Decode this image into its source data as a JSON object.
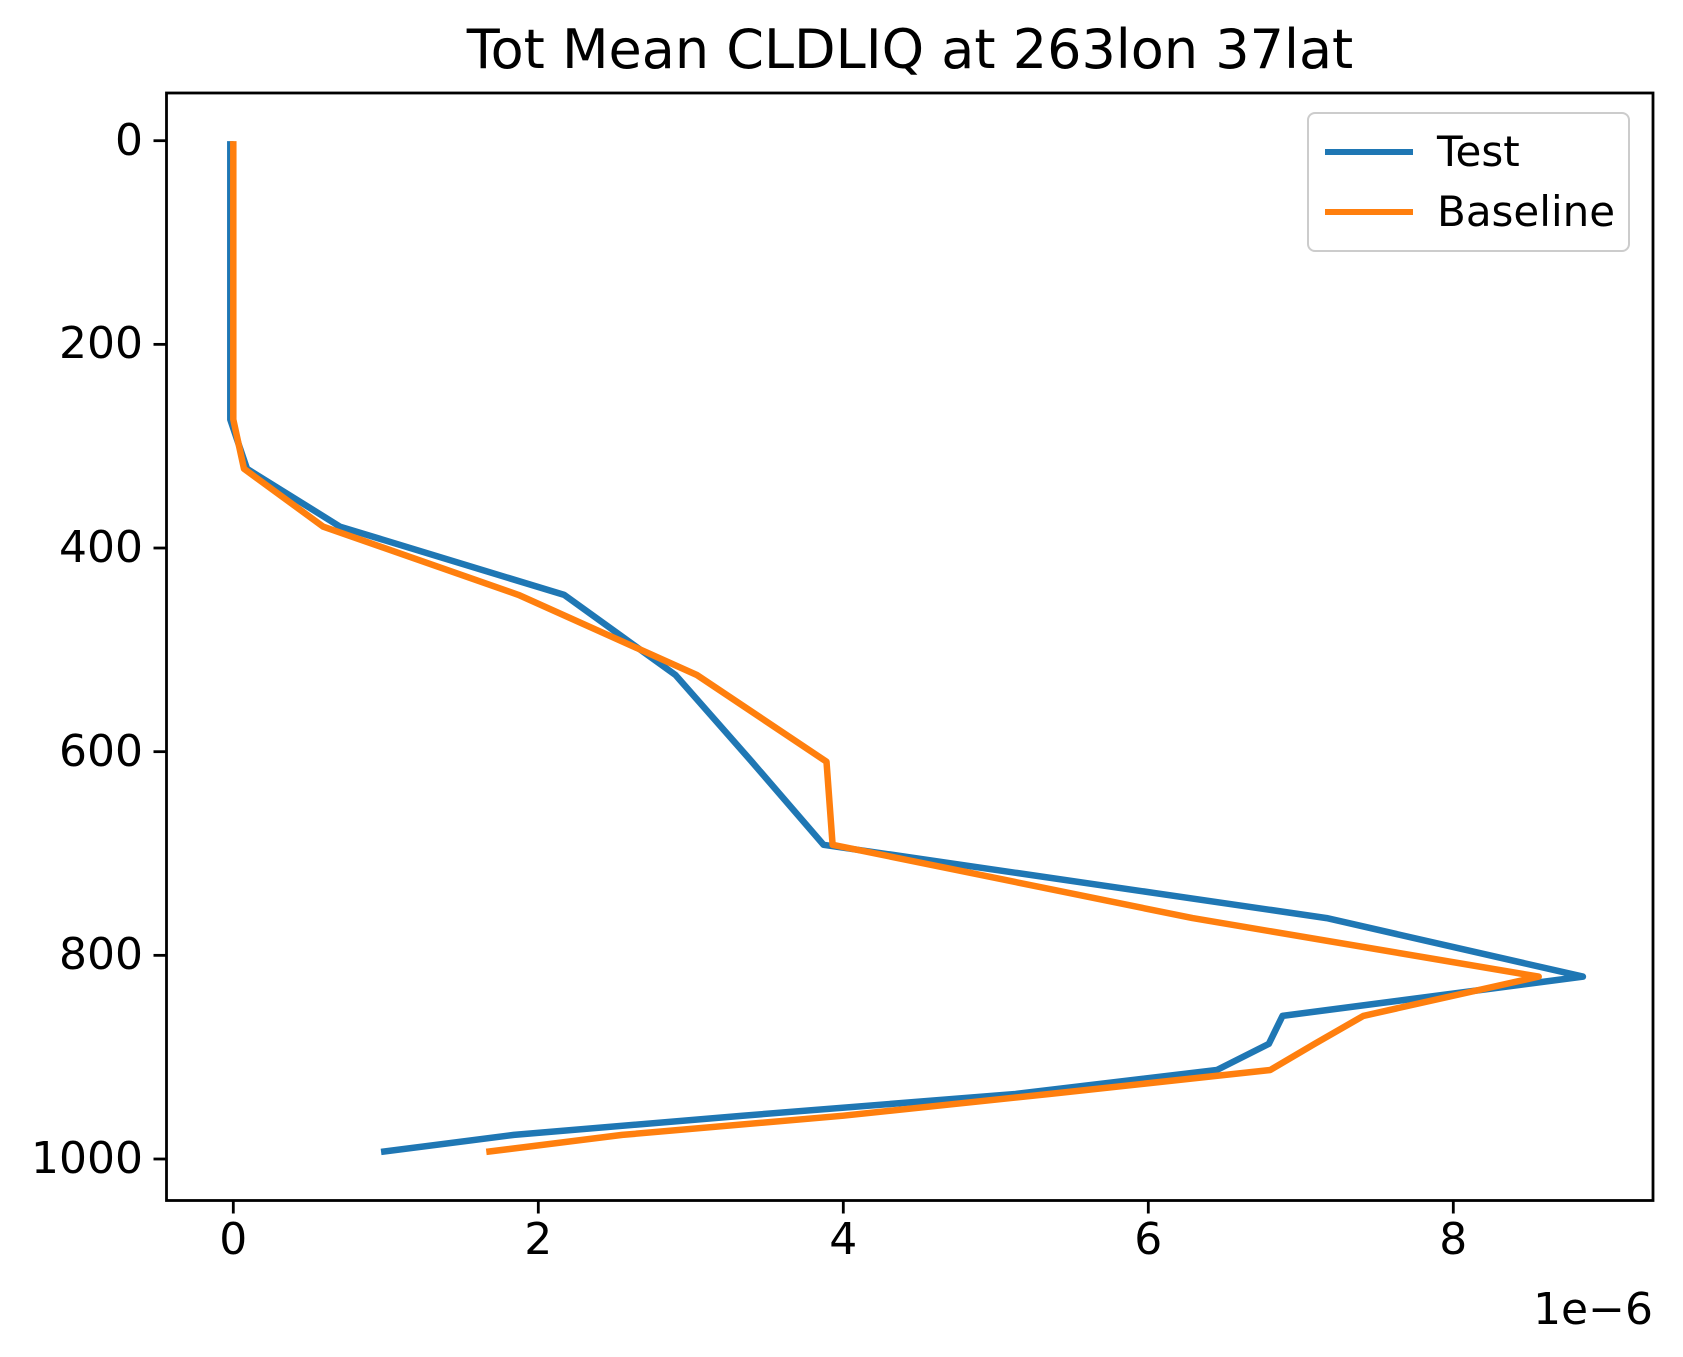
{
  "title": "Tot Mean CLDLIQ at 263lon 37lat",
  "axes": {
    "xtick_labels": [
      "0",
      "2",
      "4",
      "6",
      "8"
    ],
    "ytick_labels": [
      "0",
      "200",
      "400",
      "600",
      "800",
      "1000"
    ],
    "x_offset_label": "1e−6"
  },
  "legend": {
    "items": [
      {
        "label": "Test",
        "color": "#1f77b4"
      },
      {
        "label": "Baseline",
        "color": "#ff7f0e"
      }
    ]
  },
  "chart_data": {
    "type": "line",
    "title": "Tot Mean CLDLIQ at 263lon 37lat",
    "xlabel": "",
    "ylabel": "",
    "x_offset_label": "1e−6",
    "x_unit_note": "x values are in units of 1e-6 (kg/kg); y is pressure level (hPa), axis inverted",
    "xticks": [
      0,
      2,
      4,
      6,
      8
    ],
    "yticks": [
      0,
      200,
      400,
      600,
      800,
      1000
    ],
    "xlim": [
      -0.44,
      9.31
    ],
    "ylim": [
      1041,
      -47
    ],
    "y_axis_inverted": true,
    "grid": false,
    "legend_position": "upper right",
    "legend_labels": [
      "Test",
      "Baseline"
    ],
    "series": [
      {
        "name": "Test",
        "color": "#1f77b4",
        "points": [
          [
            -0.02,
            3.6
          ],
          [
            -0.02,
            100.0
          ],
          [
            -0.02,
            200.0
          ],
          [
            -0.02,
            232.8
          ],
          [
            -0.02,
            273.9
          ],
          [
            0.09,
            322.2
          ],
          [
            0.7,
            379.1
          ],
          [
            2.17,
            446.0
          ],
          [
            2.9,
            524.7
          ],
          [
            3.4,
            609.8
          ],
          [
            3.87,
            691.4
          ],
          [
            7.17,
            763.4
          ],
          [
            8.85,
            820.9
          ],
          [
            6.88,
            859.5
          ],
          [
            6.79,
            887.0
          ],
          [
            6.45,
            912.6
          ],
          [
            5.13,
            936.2
          ],
          [
            3.34,
            957.5
          ],
          [
            1.84,
            976.3
          ],
          [
            0.99,
            992.6
          ]
        ]
      },
      {
        "name": "Baseline",
        "color": "#ff7f0e",
        "points": [
          [
            0.0,
            3.6
          ],
          [
            0.0,
            100.0
          ],
          [
            0.0,
            200.0
          ],
          [
            0.0,
            232.8
          ],
          [
            0.0,
            273.9
          ],
          [
            0.07,
            322.2
          ],
          [
            0.59,
            379.1
          ],
          [
            1.87,
            446.0
          ],
          [
            3.04,
            524.7
          ],
          [
            3.89,
            609.8
          ],
          [
            3.93,
            691.4
          ],
          [
            6.29,
            763.4
          ],
          [
            8.56,
            820.9
          ],
          [
            7.41,
            859.5
          ],
          [
            7.09,
            887.0
          ],
          [
            6.8,
            912.6
          ],
          [
            5.35,
            936.2
          ],
          [
            4.0,
            957.5
          ],
          [
            2.55,
            976.3
          ],
          [
            1.68,
            992.6
          ]
        ]
      }
    ]
  }
}
